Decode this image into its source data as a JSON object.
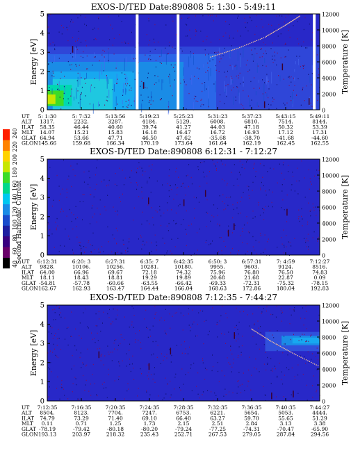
{
  "colorbar": {
    "label": "Second Harmonic Current",
    "ticks": [
      "40",
      "60",
      "80",
      "100",
      "120",
      "140",
      "160",
      "180",
      "200",
      "220",
      "240"
    ],
    "colors": [
      "#000000",
      "#6a006a",
      "#3a0080",
      "#1e1ea0",
      "#1a4ccc",
      "#1a8ce6",
      "#00c8f0",
      "#00d88c",
      "#3cdc28",
      "#c8e600",
      "#ffd200",
      "#ff8200",
      "#ff1e00"
    ]
  },
  "row_labels": [
    "UT",
    "ALT",
    "ILAT",
    "MLT",
    "GLAT",
    "GLON"
  ],
  "chart_data": [
    {
      "type": "heatmap",
      "title": "EXOS-D/TED   Date:890808   5: 1:30 - 5:49:11",
      "ylabel": "Energy [eV]",
      "y2label": "Temperature [K]",
      "ylim": [
        0,
        5
      ],
      "yticks": [
        0,
        1,
        2,
        3,
        4,
        5
      ],
      "y2lim": [
        0,
        12000
      ],
      "y2ticks": [
        0,
        2000,
        4000,
        6000,
        8000,
        10000,
        12000
      ],
      "columns": [
        {
          "UT": "5: 1:30",
          "ALT": "1317.",
          "ILAT": "58.35",
          "MLT": "14.07",
          "GLAT": "64.94",
          "GLON": "145.66"
        },
        {
          "UT": "5: 7:32",
          "ALT": "2232.",
          "ILAT": "46.44",
          "MLT": "15.21",
          "GLAT": "53.66",
          "GLON": "159.68"
        },
        {
          "UT": "5:13:56",
          "ALT": "3287.",
          "ILAT": "40.60",
          "MLT": "15.83",
          "GLAT": "47.71",
          "GLON": "166.34"
        },
        {
          "UT": "5:19:23",
          "ALT": "4184.",
          "ILAT": "39.74",
          "MLT": "16.18",
          "GLAT": "46.50",
          "GLON": "170.19"
        },
        {
          "UT": "5:25:23",
          "ALT": "5129.",
          "ILAT": "41.27",
          "MLT": "16.47",
          "GLAT": "47.62",
          "GLON": "173.64"
        },
        {
          "UT": "5:31:23",
          "ALT": "6008.",
          "ILAT": "44.03",
          "MLT": "16.72",
          "GLAT": "-35.68",
          "GLON": "161.64"
        },
        {
          "UT": "5:37:23",
          "ALT": "6810.",
          "ILAT": "47.18",
          "MLT": "16.93",
          "GLAT": "-38.70",
          "GLON": "162.19"
        },
        {
          "UT": "5:43:15",
          "ALT": "7514.",
          "ILAT": "50.32",
          "MLT": "17.12",
          "GLAT": "-41.68",
          "GLON": "162.45"
        },
        {
          "UT": "5:49:11",
          "ALT": "8144.",
          "ILAT": "53.39",
          "MLT": "17.31",
          "GLAT": "-44.60",
          "GLON": "162.55"
        }
      ],
      "gaps": [
        0.33,
        0.48,
        0.98
      ],
      "activity": "plasma",
      "temperature_trace": [
        {
          "x": 0.6,
          "T": 6600
        },
        {
          "x": 0.7,
          "T": 7700
        },
        {
          "x": 0.8,
          "T": 9100
        },
        {
          "x": 0.87,
          "T": 10500
        },
        {
          "x": 0.93,
          "T": 11800
        }
      ]
    },
    {
      "type": "heatmap",
      "title": "EXOS-D/TED   Date:890808   6:12:31 - 7:12:27",
      "ylabel": "Energy [eV]",
      "y2label": "Temperature [K]",
      "ylim": [
        0,
        5
      ],
      "yticks": [
        0,
        1,
        2,
        3,
        4,
        5
      ],
      "y2lim": [
        0,
        12000
      ],
      "y2ticks": [
        0,
        2000,
        4000,
        6000,
        8000,
        10000,
        12000
      ],
      "columns": [
        {
          "UT": "6:12:31",
          "ALT": "9828.",
          "ILAT": "64.00",
          "MLT": "18.11",
          "GLAT": "-54.81",
          "GLON": "162.67"
        },
        {
          "UT": "6:20: 3",
          "ALT": "10106.",
          "ILAT": "66.96",
          "MLT": "18.43",
          "GLAT": "-57.78",
          "GLON": "162.93"
        },
        {
          "UT": "6:27:31",
          "ALT": "10256.",
          "ILAT": "69.67",
          "MLT": "18.81",
          "GLAT": "-60.66",
          "GLON": "163.47"
        },
        {
          "UT": "6:35: 7",
          "ALT": "10281.",
          "ILAT": "72.18",
          "MLT": "19.29",
          "GLAT": "-63.55",
          "GLON": "164.44"
        },
        {
          "UT": "6:42:35",
          "ALT": "10180.",
          "ILAT": "74.32",
          "MLT": "19.89",
          "GLAT": "-66.42",
          "GLON": "166.04"
        },
        {
          "UT": "6:50: 3",
          "ALT": "9955.",
          "ILAT": "75.96",
          "MLT": "20.68",
          "GLAT": "-69.33",
          "GLON": "168.63"
        },
        {
          "UT": "6:57:31",
          "ALT": "9603.",
          "ILAT": "76.80",
          "MLT": "21.68",
          "GLAT": "-72.31",
          "GLON": "172.86"
        },
        {
          "UT": "7: 4:59",
          "ALT": "9124.",
          "ILAT": "76.50",
          "MLT": "22.87",
          "GLAT": "-75.32",
          "GLON": "180.04"
        },
        {
          "UT": "7:12:27",
          "ALT": "8516.",
          "ILAT": "74.83",
          "MLT": "0.09",
          "GLAT": "-78.15",
          "GLON": "192.83"
        }
      ],
      "gaps": [],
      "activity": "quiet",
      "temperature_trace": []
    },
    {
      "type": "heatmap",
      "title": "EXOS-D/TED   Date:890808   7:12:35 - 7:44:27",
      "ylabel": "Energy [eV]",
      "y2label": "Temperature [K]",
      "ylim": [
        0,
        5
      ],
      "yticks": [
        0,
        1,
        2,
        3,
        4,
        5
      ],
      "y2lim": [
        0,
        12000
      ],
      "y2ticks": [
        0,
        2000,
        4000,
        6000,
        8000,
        10000,
        12000
      ],
      "columns": [
        {
          "UT": "7:12:35",
          "ALT": "8504.",
          "ILAT": "74.79",
          "MLT": "0.11",
          "GLAT": "-78.19",
          "GLON": "193.13"
        },
        {
          "UT": "7:16:35",
          "ALT": "8123.",
          "ILAT": "73.29",
          "MLT": "0.71",
          "GLAT": "-79.42",
          "GLON": "203.97"
        },
        {
          "UT": "7:20:35",
          "ALT": "7704.",
          "ILAT": "71.40",
          "MLT": "1.25",
          "GLAT": "-80.18",
          "GLON": "218.32"
        },
        {
          "UT": "7:24:35",
          "ALT": "7247.",
          "ILAT": "69.10",
          "MLT": "1.73",
          "GLAT": "-80.20",
          "GLON": "235.43"
        },
        {
          "UT": "7:28:35",
          "ALT": "6753.",
          "ILAT": "66.40",
          "MLT": "2.15",
          "GLAT": "-79.24",
          "GLON": "252.71"
        },
        {
          "UT": "7:32:35",
          "ALT": "6221.",
          "ILAT": "63.27",
          "MLT": "2.51",
          "GLAT": "-77.25",
          "GLON": "267.53"
        },
        {
          "UT": "7:36:35",
          "ALT": "5654.",
          "ILAT": "59.70",
          "MLT": "2.84",
          "GLAT": "-74.31",
          "GLON": "279.05"
        },
        {
          "UT": "7:40:35",
          "ALT": "5053.",
          "ILAT": "55.65",
          "MLT": "3.13",
          "GLAT": "-70.47",
          "GLON": "287.84"
        },
        {
          "UT": "7:44:27",
          "ALT": "4444.",
          "ILAT": "51.29",
          "MLT": "3.38",
          "GLAT": "-65.90",
          "GLON": "294.56"
        }
      ],
      "gaps": [],
      "activity": "late-band",
      "temperature_trace": [
        {
          "x": 0.75,
          "T": 9000
        },
        {
          "x": 0.82,
          "T": 7500
        },
        {
          "x": 0.9,
          "T": 6000
        },
        {
          "x": 1.0,
          "T": 4300
        }
      ]
    }
  ]
}
